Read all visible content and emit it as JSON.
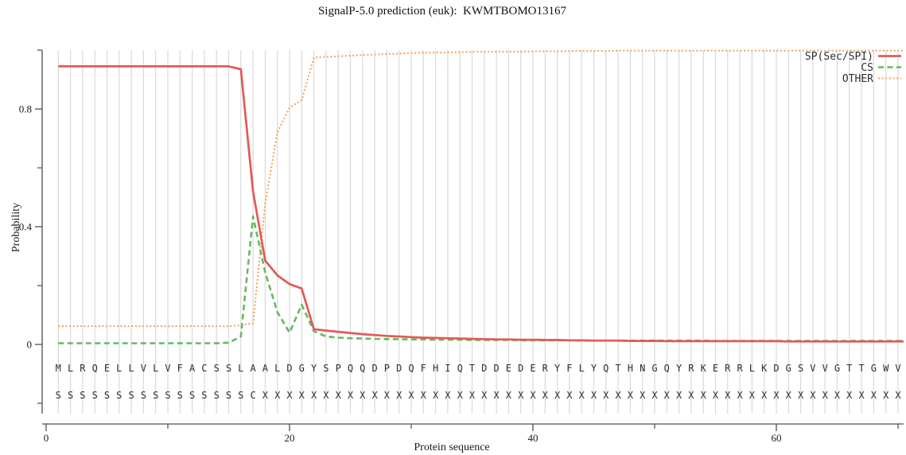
{
  "title": "SignalP-5.0 prediction (euk):  KWMTBOMO13167",
  "chart_data": {
    "type": "line",
    "title": "SignalP-5.0 prediction (euk):  KWMTBOMO13167",
    "xlabel": "Protein sequence",
    "ylabel": "Probability",
    "xlim": [
      0,
      70.5
    ],
    "ylim": [
      -0.23,
      1.0
    ],
    "grid": "vertical-per-residue",
    "legend_position": "top-right",
    "x_major_ticks": [
      0,
      20,
      40,
      60
    ],
    "x_minor_ticks": [
      10,
      30,
      50,
      70
    ],
    "y_major_ticks": [
      0,
      0.4,
      0.8
    ],
    "y_minor_ticks": [
      -0.2,
      0.2,
      0.6,
      1.0
    ],
    "x_start": 1,
    "sequence": "MLRQELLVLVFACSSLAALDGYSPQQDPDQFHIQTDDEDERYFLYQTHNGQYRKERRLKDGSVVGTTGWV",
    "annotation": "SSSSSSSSSSSSSSSSCXXXXXXXXXXXXXXXXXXXXXXXXXXXXXXXXXXXXXXXXXXXXXXXXXXXXX",
    "colors": {
      "sp": "#e25959",
      "cs": "#66b95f",
      "other": "#f2a55f",
      "grid": "#d9d9d9",
      "axis": "#4d4d4d",
      "text": "#1a1a1a"
    },
    "series": [
      {
        "name": "SP(Sec/SPI)",
        "style": "solid",
        "color": "#e25959",
        "values": [
          0.945,
          0.945,
          0.945,
          0.945,
          0.945,
          0.945,
          0.945,
          0.945,
          0.945,
          0.945,
          0.945,
          0.945,
          0.945,
          0.945,
          0.945,
          0.935,
          0.52,
          0.285,
          0.235,
          0.205,
          0.19,
          0.052,
          0.047,
          0.043,
          0.039,
          0.035,
          0.032,
          0.029,
          0.027,
          0.025,
          0.023,
          0.022,
          0.021,
          0.02,
          0.019,
          0.018,
          0.017,
          0.017,
          0.016,
          0.016,
          0.015,
          0.015,
          0.014,
          0.014,
          0.013,
          0.013,
          0.013,
          0.012,
          0.012,
          0.012,
          0.011,
          0.011,
          0.011,
          0.011,
          0.011,
          0.011,
          0.011,
          0.011,
          0.011,
          0.011,
          0.01,
          0.01,
          0.01,
          0.01,
          0.01,
          0.01,
          0.01,
          0.01,
          0.01,
          0.01
        ]
      },
      {
        "name": "CS",
        "style": "dashed",
        "color": "#66b95f",
        "values": [
          0.004,
          0.004,
          0.004,
          0.004,
          0.004,
          0.004,
          0.004,
          0.004,
          0.004,
          0.004,
          0.004,
          0.004,
          0.004,
          0.004,
          0.006,
          0.027,
          0.435,
          0.245,
          0.11,
          0.04,
          0.135,
          0.045,
          0.027,
          0.023,
          0.021,
          0.02,
          0.019,
          0.018,
          0.018,
          0.017,
          0.017,
          0.016,
          0.016,
          0.016,
          0.015,
          0.015,
          0.015,
          0.015,
          0.014,
          0.014,
          0.014,
          0.014,
          0.014,
          0.013,
          0.013,
          0.013,
          0.013,
          0.013,
          0.013,
          0.013,
          0.013,
          0.013,
          0.013,
          0.013,
          0.012,
          0.012,
          0.012,
          0.012,
          0.012,
          0.012,
          0.012,
          0.012,
          0.012,
          0.012,
          0.012,
          0.012,
          0.012,
          0.012,
          0.012,
          0.012
        ]
      },
      {
        "name": "OTHER",
        "style": "dotted",
        "color": "#f2a55f",
        "values": [
          0.062,
          0.062,
          0.062,
          0.062,
          0.062,
          0.062,
          0.062,
          0.062,
          0.062,
          0.062,
          0.062,
          0.062,
          0.062,
          0.062,
          0.062,
          0.065,
          0.072,
          0.48,
          0.72,
          0.805,
          0.83,
          0.975,
          0.977,
          0.979,
          0.981,
          0.983,
          0.985,
          0.987,
          0.988,
          0.99,
          0.991,
          0.992,
          0.992,
          0.993,
          0.994,
          0.994,
          0.995,
          0.995,
          0.995,
          0.996,
          0.996,
          0.996,
          0.997,
          0.997,
          0.997,
          0.997,
          0.998,
          0.998,
          0.998,
          0.998,
          0.998,
          0.998,
          0.998,
          0.998,
          0.998,
          0.998,
          0.998,
          0.998,
          0.998,
          0.998,
          0.998,
          0.998,
          0.998,
          0.998,
          0.998,
          0.998,
          0.998,
          0.998,
          0.998,
          0.998
        ]
      }
    ]
  }
}
